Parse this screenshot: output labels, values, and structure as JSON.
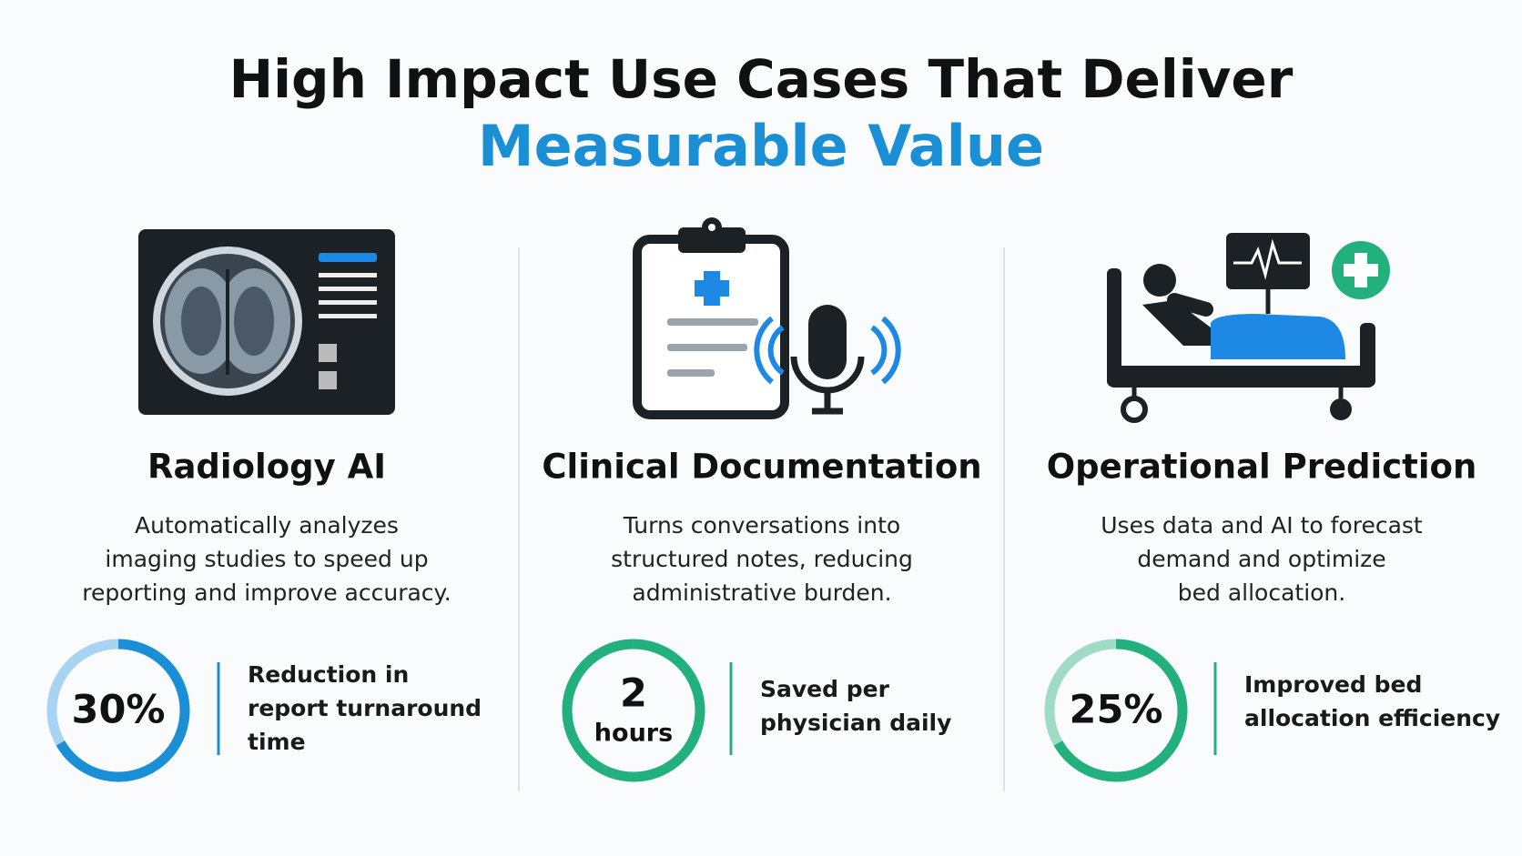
{
  "header": {
    "title": "High Impact Use Cases That Deliver",
    "highlight": "Measurable Value"
  },
  "columns": [
    {
      "title": "Radiology AI",
      "description": [
        "Automatically analyzes",
        "imaging studies to speed up",
        "reporting and improve accuracy."
      ],
      "stat": {
        "value": [
          "30%"
        ],
        "caption": [
          "Reduction in",
          "report turnaround",
          "time"
        ]
      }
    },
    {
      "title": "Clinical Documentation",
      "description": [
        "Turns conversations into",
        "structured notes, reducing",
        "administrative burden."
      ],
      "stat": {
        "value": [
          "2",
          "hours"
        ],
        "caption": [
          "Saved per",
          "physician daily"
        ]
      }
    },
    {
      "title": "Operational Prediction",
      "description": [
        "Uses data and AI to forecast",
        "demand and optimize",
        "bed allocation."
      ],
      "stat": {
        "value": [
          "25%"
        ],
        "caption": [
          "Improved bed",
          "allocation efficiency"
        ]
      }
    }
  ]
}
